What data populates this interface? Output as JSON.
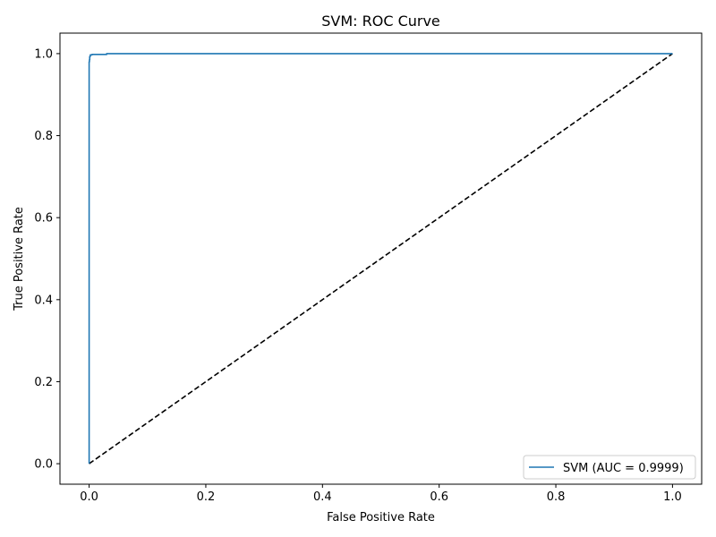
{
  "chart_data": {
    "type": "line",
    "title": "SVM: ROC Curve",
    "xlabel": "False Positive Rate",
    "ylabel": "True Positive Rate",
    "xlim": [
      -0.05,
      1.05
    ],
    "ylim": [
      -0.05,
      1.05
    ],
    "x_ticks": [
      "0.0",
      "0.2",
      "0.4",
      "0.6",
      "0.8",
      "1.0"
    ],
    "y_ticks": [
      "0.0",
      "0.2",
      "0.4",
      "0.6",
      "0.8",
      "1.0"
    ],
    "grid": false,
    "legend_position": "lower-right",
    "series": [
      {
        "name": "SVM (AUC = 0.9999)",
        "color": "#1f77b4",
        "style": "solid",
        "x": [
          0.0,
          0.0,
          0.0005,
          0.0005,
          0.001,
          0.001,
          0.002,
          0.002,
          0.005,
          0.005,
          0.03,
          0.03,
          1.0
        ],
        "y": [
          0.0,
          0.98,
          0.98,
          0.985,
          0.985,
          0.993,
          0.993,
          0.997,
          0.997,
          0.998,
          0.998,
          1.0,
          1.0
        ]
      },
      {
        "name": "",
        "color": "#000000",
        "style": "dashed",
        "x": [
          0.0,
          1.0
        ],
        "y": [
          0.0,
          1.0
        ]
      }
    ]
  }
}
